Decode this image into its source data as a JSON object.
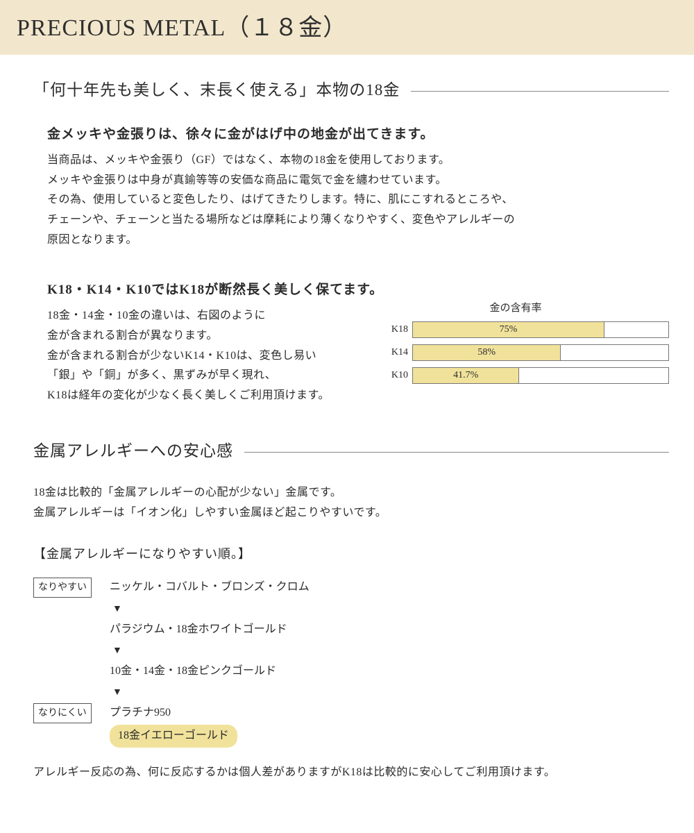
{
  "banner": {
    "title": "PRECIOUS METAL（１８金）"
  },
  "section1": {
    "heading": "「何十年先も美しく、末長く使える」本物の18金",
    "block1": {
      "title": "金メッキや金張りは、徐々に金がはげ中の地金が出てきます。",
      "p1": "当商品は、メッキや金張り（GF）ではなく、本物の18金を使用しております。",
      "p2": "メッキや金張りは中身が真鍮等等の安価な商品に電気で金を纏わせています。",
      "p3": "その為、使用していると変色したり、はげてきたりします。特に、肌にこすれるところや、",
      "p4": "チェーンや、チェーンと当たる場所などは摩耗により薄くなりやすく、変色やアレルギーの",
      "p5": "原因となります。"
    },
    "block2": {
      "title": "K18・K14・K10ではK18が断然長く美しく保てます。",
      "p1": "18金・14金・10金の違いは、右図のように",
      "p2": "金が含まれる割合が異なります。",
      "p3": "金が含まれる割合が少ないK14・K10は、変色し易い",
      "p4": "「銀」や「銅」が多く、黒ずみが早く現れ、",
      "p5": "K18は経年の変化が少なく長く美しくご利用頂けます。"
    }
  },
  "chart": {
    "title": "金の含有率",
    "bars": [
      {
        "label": "K18",
        "value": 75,
        "display": "75%"
      },
      {
        "label": "K14",
        "value": 58,
        "display": "58%"
      },
      {
        "label": "K10",
        "value": 41.7,
        "display": "41.7%"
      }
    ],
    "colors": {
      "fill": "#f1e29b",
      "border": "#777",
      "track_bg": "#ffffff"
    }
  },
  "section2": {
    "heading": "金属アレルギーへの安心感",
    "p1": "18金は比較的「金属アレルギーの心配が少ない」金属です。",
    "p2": "金属アレルギーは「イオン化」しやすい金属ほど起こりやすいです。",
    "subheading": "【金属アレルギーになりやすい順。】",
    "ranks": {
      "tag_high": "なりやすい",
      "tag_low": "なりにくい",
      "arrow": "▼",
      "r1": "ニッケル・コバルト・ブロンズ・クロム",
      "r2": "パラジウム・18金ホワイトゴールド",
      "r3": "10金・14金・18金ピンクゴールド",
      "r4": "プラチナ950",
      "r5": "18金イエローゴールド"
    },
    "footnote": "アレルギー反応の為、何に反応するかは個人差がありますがK18は比較的に安心してご利用頂けます。"
  }
}
